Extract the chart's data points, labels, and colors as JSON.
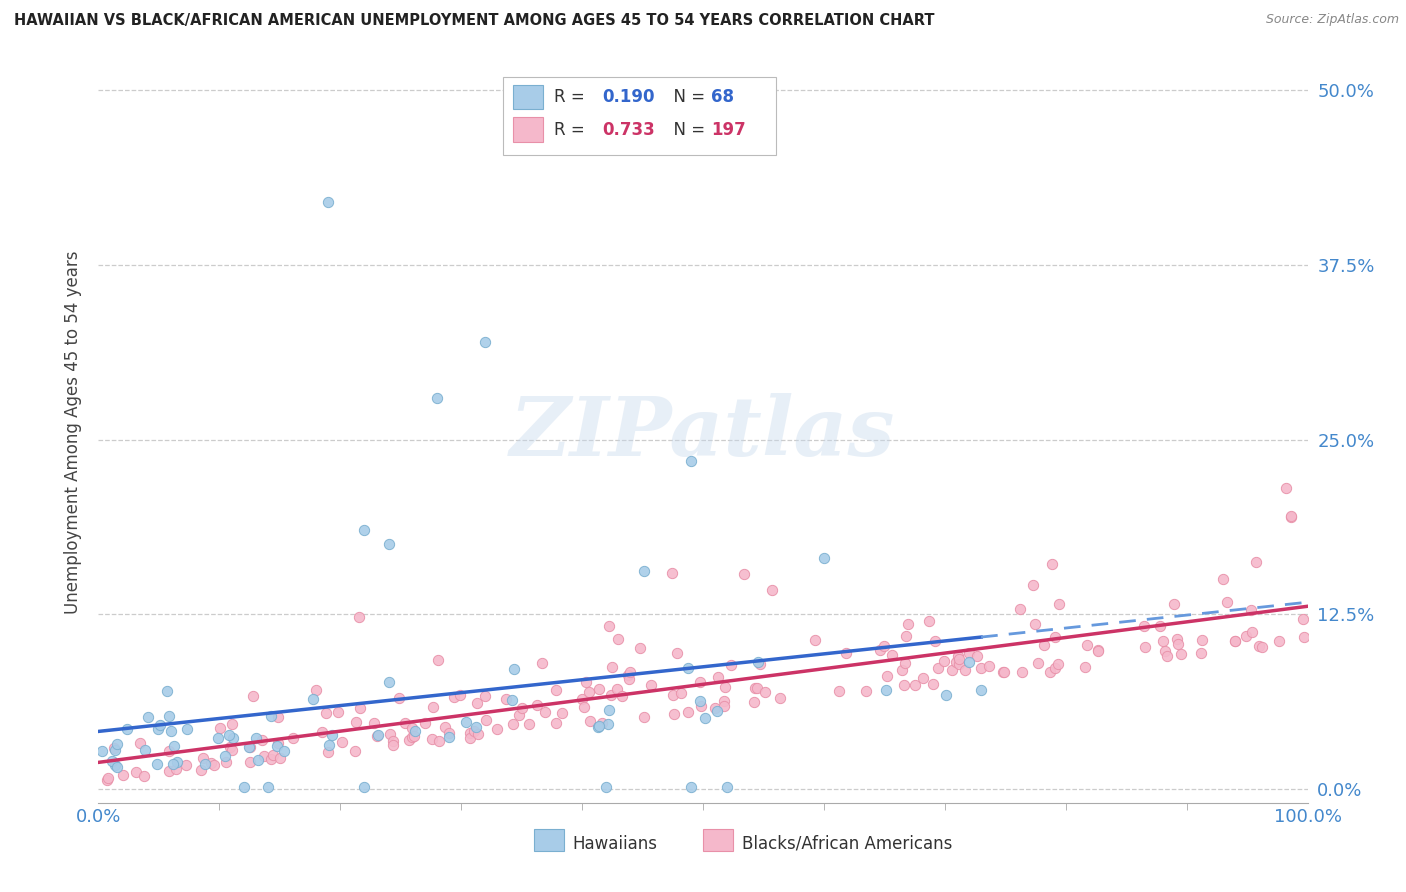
{
  "title": "HAWAIIAN VS BLACK/AFRICAN AMERICAN UNEMPLOYMENT AMONG AGES 45 TO 54 YEARS CORRELATION CHART",
  "source": "Source: ZipAtlas.com",
  "ylabel": "Unemployment Among Ages 45 to 54 years",
  "ytick_labels": [
    "0.0%",
    "12.5%",
    "25.0%",
    "37.5%",
    "50.0%"
  ],
  "ytick_values": [
    0.0,
    0.125,
    0.25,
    0.375,
    0.5
  ],
  "xlim": [
    0.0,
    1.0
  ],
  "ylim": [
    -0.01,
    0.52
  ],
  "legend_r_blue": "0.190",
  "legend_n_blue": "68",
  "legend_r_pink": "0.733",
  "legend_n_pink": "197",
  "watermark": "ZIPatlas",
  "hawaiians_color": "#a8cce8",
  "hawaiians_edge": "#7aafd0",
  "blacks_color": "#f5b8cb",
  "blacks_edge": "#e890a8",
  "trend_blue_color": "#3366cc",
  "trend_blue_dash_color": "#6699dd",
  "trend_pink_color": "#cc3366",
  "background_color": "#ffffff",
  "grid_color": "#cccccc",
  "title_color": "#222222",
  "axis_label_color": "#444444",
  "ytick_color": "#4488cc",
  "xtick_color": "#4488cc",
  "legend_text_color": "#333333",
  "source_color": "#888888"
}
